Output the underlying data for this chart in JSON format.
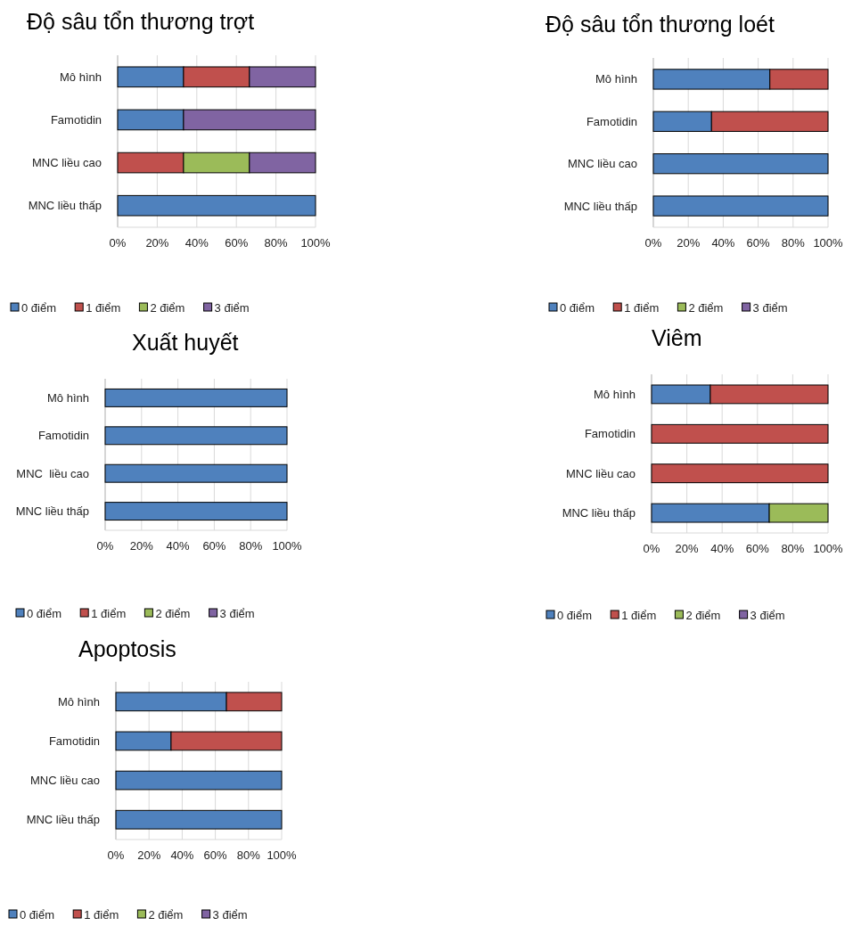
{
  "chart_data": [
    {
      "type": "bar",
      "orientation": "horizontal",
      "stacked": true,
      "title": "Độ sâu tổn thương trợt",
      "categories": [
        "Mô hình",
        "Famotidin",
        "MNC liều cao",
        "MNC liều thấp"
      ],
      "xlim": [
        0,
        100
      ],
      "xticks": [
        {
          "value": 0,
          "label": "0%"
        },
        {
          "value": 20,
          "label": "20%"
        },
        {
          "value": 40,
          "label": "40%"
        },
        {
          "value": 60,
          "label": "60%"
        },
        {
          "value": 80,
          "label": "80%"
        },
        {
          "value": 100,
          "label": "100%"
        }
      ],
      "grid": "x",
      "legend": "bottom",
      "series": [
        {
          "name": "0 điểm",
          "color": "#4f81bd",
          "values": [
            33.3,
            33.3,
            0,
            100
          ]
        },
        {
          "name": "1 điểm",
          "color": "#c0504d",
          "values": [
            33.3,
            0,
            33.3,
            0
          ]
        },
        {
          "name": "2 điểm",
          "color": "#9bbb59",
          "values": [
            0,
            0,
            33.3,
            0
          ]
        },
        {
          "name": "3 điểm",
          "color": "#8064a2",
          "values": [
            33.4,
            66.7,
            33.4,
            0
          ]
        }
      ]
    },
    {
      "type": "bar",
      "orientation": "horizontal",
      "stacked": true,
      "title": "Độ sâu tổn thương loét",
      "categories": [
        "Mô hình",
        "Famotidin",
        "MNC liều cao",
        "MNC liều thấp"
      ],
      "xlim": [
        0,
        100
      ],
      "xticks": [
        {
          "value": 0,
          "label": "0%"
        },
        {
          "value": 20,
          "label": "20%"
        },
        {
          "value": 40,
          "label": "40%"
        },
        {
          "value": 60,
          "label": "60%"
        },
        {
          "value": 80,
          "label": "80%"
        },
        {
          "value": 100,
          "label": "100%"
        }
      ],
      "grid": "x",
      "legend": "bottom",
      "series": [
        {
          "name": "0 điểm",
          "color": "#4f81bd",
          "values": [
            66.7,
            33.3,
            100,
            100
          ]
        },
        {
          "name": "1 điểm",
          "color": "#c0504d",
          "values": [
            33.3,
            66.7,
            0,
            0
          ]
        },
        {
          "name": "2 điểm",
          "color": "#9bbb59",
          "values": [
            0,
            0,
            0,
            0
          ]
        },
        {
          "name": "3 điểm",
          "color": "#8064a2",
          "values": [
            0,
            0,
            0,
            0
          ]
        }
      ]
    },
    {
      "type": "bar",
      "orientation": "horizontal",
      "stacked": true,
      "title": "Xuất huyết",
      "categories": [
        "Mô hình",
        "Famotidin",
        "MNC  liều cao",
        "MNC liều thấp"
      ],
      "xlim": [
        0,
        100
      ],
      "xticks": [
        {
          "value": 0,
          "label": "0%"
        },
        {
          "value": 20,
          "label": "20%"
        },
        {
          "value": 40,
          "label": "40%"
        },
        {
          "value": 60,
          "label": "60%"
        },
        {
          "value": 80,
          "label": "80%"
        },
        {
          "value": 100,
          "label": "100%"
        }
      ],
      "grid": "x",
      "legend": "bottom",
      "series": [
        {
          "name": "0 điểm",
          "color": "#4f81bd",
          "values": [
            100,
            100,
            100,
            100
          ]
        },
        {
          "name": "1 điểm",
          "color": "#c0504d",
          "values": [
            0,
            0,
            0,
            0
          ]
        },
        {
          "name": "2 điểm",
          "color": "#9bbb59",
          "values": [
            0,
            0,
            0,
            0
          ]
        },
        {
          "name": "3 điểm",
          "color": "#8064a2",
          "values": [
            0,
            0,
            0,
            0
          ]
        }
      ]
    },
    {
      "type": "bar",
      "orientation": "horizontal",
      "stacked": true,
      "title": "Viêm",
      "categories": [
        "Mô hình",
        "Famotidin",
        "MNC liều cao",
        "MNC liều thấp"
      ],
      "xlim": [
        0,
        100
      ],
      "xticks": [
        {
          "value": 0,
          "label": "0%"
        },
        {
          "value": 20,
          "label": "20%"
        },
        {
          "value": 40,
          "label": "40%"
        },
        {
          "value": 60,
          "label": "60%"
        },
        {
          "value": 80,
          "label": "80%"
        },
        {
          "value": 100,
          "label": "100%"
        }
      ],
      "grid": "x",
      "legend": "bottom",
      "series": [
        {
          "name": "0 điểm",
          "color": "#4f81bd",
          "values": [
            33.3,
            0,
            0,
            66.7
          ]
        },
        {
          "name": "1 điểm",
          "color": "#c0504d",
          "values": [
            66.7,
            100,
            100,
            0
          ]
        },
        {
          "name": "2 điểm",
          "color": "#9bbb59",
          "values": [
            0,
            0,
            0,
            33.3
          ]
        },
        {
          "name": "3 điểm",
          "color": "#8064a2",
          "values": [
            0,
            0,
            0,
            0
          ]
        }
      ]
    },
    {
      "type": "bar",
      "orientation": "horizontal",
      "stacked": true,
      "title": "Apoptosis",
      "categories": [
        "Mô hình",
        "Famotidin",
        "MNC liều cao",
        "MNC liều thấp"
      ],
      "xlim": [
        0,
        100
      ],
      "xticks": [
        {
          "value": 0,
          "label": "0%"
        },
        {
          "value": 20,
          "label": "20%"
        },
        {
          "value": 40,
          "label": "40%"
        },
        {
          "value": 60,
          "label": "60%"
        },
        {
          "value": 80,
          "label": "80%"
        },
        {
          "value": 100,
          "label": "100%"
        }
      ],
      "grid": "x",
      "legend": "bottom",
      "series": [
        {
          "name": "0 điểm",
          "color": "#4f81bd",
          "values": [
            66.7,
            33.3,
            100,
            100
          ]
        },
        {
          "name": "1 điểm",
          "color": "#c0504d",
          "values": [
            33.3,
            66.7,
            0,
            0
          ]
        },
        {
          "name": "2 điểm",
          "color": "#9bbb59",
          "values": [
            0,
            0,
            0,
            0
          ]
        },
        {
          "name": "3 điểm",
          "color": "#8064a2",
          "values": [
            0,
            0,
            0,
            0
          ]
        }
      ]
    }
  ]
}
